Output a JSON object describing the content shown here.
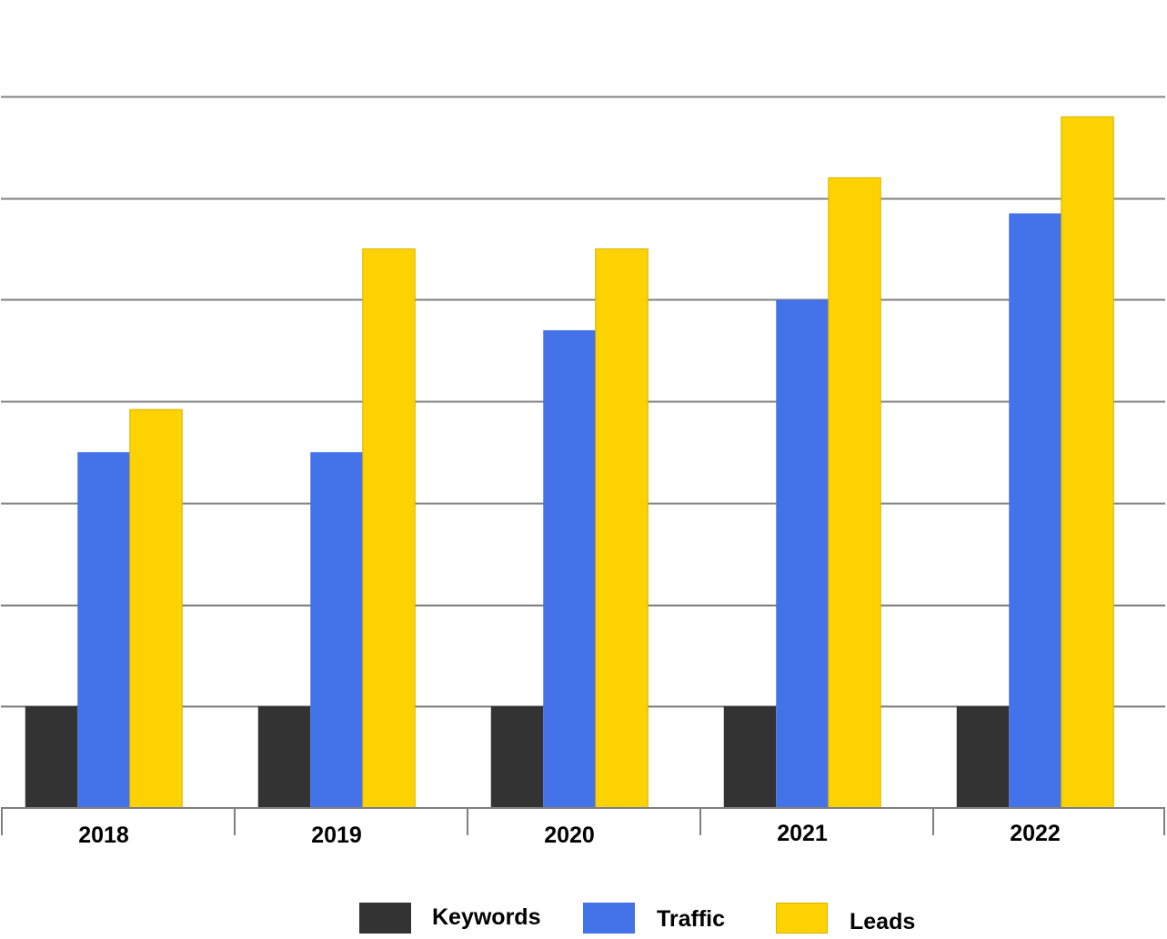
{
  "chart_data": {
    "type": "bar",
    "title": "",
    "xlabel": "",
    "ylabel": "",
    "categories": [
      "2018",
      "2019",
      "2020",
      "2021",
      "2022"
    ],
    "series": [
      {
        "name": "Keywords",
        "color": "#333333",
        "values": [
          1,
          1,
          1,
          1,
          1
        ]
      },
      {
        "name": "Traffic",
        "color": "#4472E8",
        "values": [
          3.5,
          3.5,
          4.7,
          5,
          5.85
        ]
      },
      {
        "name": "Leads",
        "color": "#FCD200",
        "values": [
          3.92,
          5.5,
          5.5,
          6.2,
          6.8
        ]
      }
    ],
    "ylim": [
      0,
      7
    ],
    "y_gridlines": [
      1,
      2,
      3,
      4,
      5,
      6,
      7
    ],
    "grid": true,
    "y_tick_labels_shown": false,
    "legend_position": "bottom"
  }
}
